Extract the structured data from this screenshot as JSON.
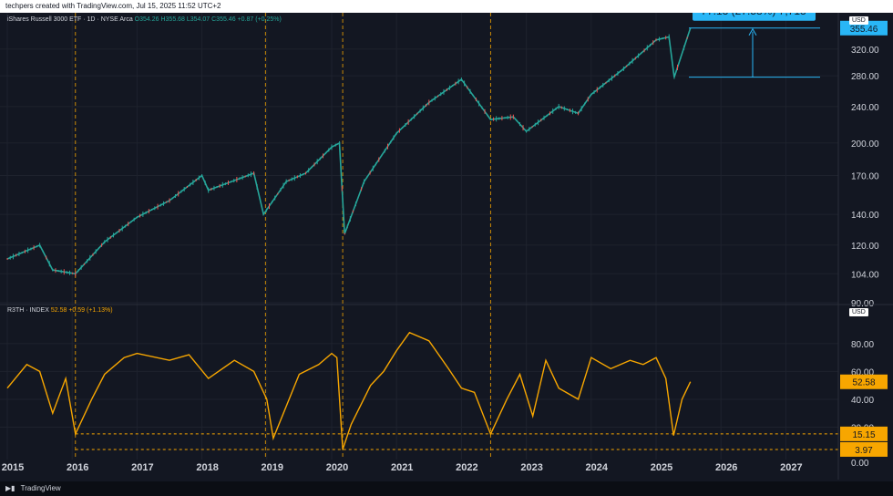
{
  "header": {
    "credit": "techpers created with TradingView.com, Jul 15, 2025 11:52 UTC+2"
  },
  "footer": {
    "brand": "TradingView"
  },
  "main_pane": {
    "symbol": "iShares Russell 3000 ETF · 1D · NYSE Arca",
    "ohlc": "O354.26 H355.68 L354.07 C355.46 +0.87 (+0.25%)",
    "currency": "USD",
    "last_price": "355.46",
    "measure_label": "77.13 (27.58%) 7,713",
    "y_ticks": [
      "90.00",
      "104.00",
      "120.00",
      "140.00",
      "170.00",
      "200.00",
      "240.00",
      "280.00",
      "320.00"
    ]
  },
  "lower_pane": {
    "indicator": "R3TH · INDEX",
    "value_text": "52.58",
    "change_text": "+0.59 (+1.13%)",
    "currency": "USD",
    "last_value": "52.58",
    "level_1": "15.15",
    "level_2": "3.97",
    "y_ticks": [
      "20.00",
      "40.00",
      "60.00",
      "80.00"
    ],
    "y_tick_bottom": "0.00"
  },
  "x_axis": {
    "years": [
      "2015",
      "2016",
      "2017",
      "2018",
      "2019",
      "2020",
      "2021",
      "2022",
      "2023",
      "2024",
      "2025",
      "2026",
      "2027"
    ]
  },
  "colors": {
    "background": "#131722",
    "up": "#26a69a",
    "down": "#ef5350",
    "breadth": "#f7a600",
    "measure": "#29b6f6",
    "vline": "#f7a600"
  },
  "chart_data": [
    {
      "type": "line",
      "title": "iShares Russell 3000 ETF · 1D · NYSE Arca",
      "scale": "log",
      "ylim": [
        90,
        360
      ],
      "x": [
        2015.0,
        2015.5,
        2015.7,
        2016.05,
        2016.5,
        2017.0,
        2017.5,
        2018.0,
        2018.1,
        2018.8,
        2018.95,
        2019.3,
        2019.6,
        2020.0,
        2020.12,
        2020.2,
        2020.5,
        2021.0,
        2021.5,
        2022.0,
        2022.45,
        2022.8,
        2023.0,
        2023.5,
        2023.8,
        2024.0,
        2024.5,
        2025.0,
        2025.2,
        2025.28,
        2025.53
      ],
      "y": [
        112,
        120,
        106,
        104,
        122,
        138,
        150,
        170,
        158,
        172,
        140,
        165,
        172,
        196,
        200,
        127,
        165,
        210,
        245,
        275,
        225,
        228,
        212,
        240,
        232,
        255,
        290,
        335,
        340,
        278,
        355.46
      ],
      "annotations": [
        "77.13 (27.58%) 7,713"
      ]
    },
    {
      "type": "line",
      "title": "R3TH · INDEX",
      "ylim": [
        0,
        95
      ],
      "x": [
        2015.0,
        2015.3,
        2015.5,
        2015.7,
        2015.9,
        2016.05,
        2016.3,
        2016.5,
        2016.8,
        2017.0,
        2017.5,
        2017.8,
        2018.1,
        2018.5,
        2018.8,
        2019.0,
        2019.1,
        2019.5,
        2019.8,
        2020.0,
        2020.08,
        2020.17,
        2020.3,
        2020.6,
        2020.8,
        2021.0,
        2021.2,
        2021.5,
        2021.8,
        2022.0,
        2022.2,
        2022.45,
        2022.7,
        2022.9,
        2023.1,
        2023.3,
        2023.5,
        2023.8,
        2024.0,
        2024.3,
        2024.6,
        2024.8,
        2025.0,
        2025.15,
        2025.27,
        2025.4,
        2025.53
      ],
      "y": [
        48,
        65,
        60,
        30,
        55,
        15.15,
        40,
        58,
        70,
        73,
        68,
        72,
        55,
        68,
        60,
        40,
        12,
        58,
        65,
        73,
        70,
        3.97,
        22,
        50,
        60,
        75,
        88,
        82,
        62,
        48,
        45,
        15,
        40,
        58,
        28,
        68,
        48,
        40,
        70,
        62,
        68,
        65,
        70,
        55,
        14,
        40,
        52.58
      ],
      "reference_levels": [
        15.15,
        3.97
      ]
    }
  ]
}
